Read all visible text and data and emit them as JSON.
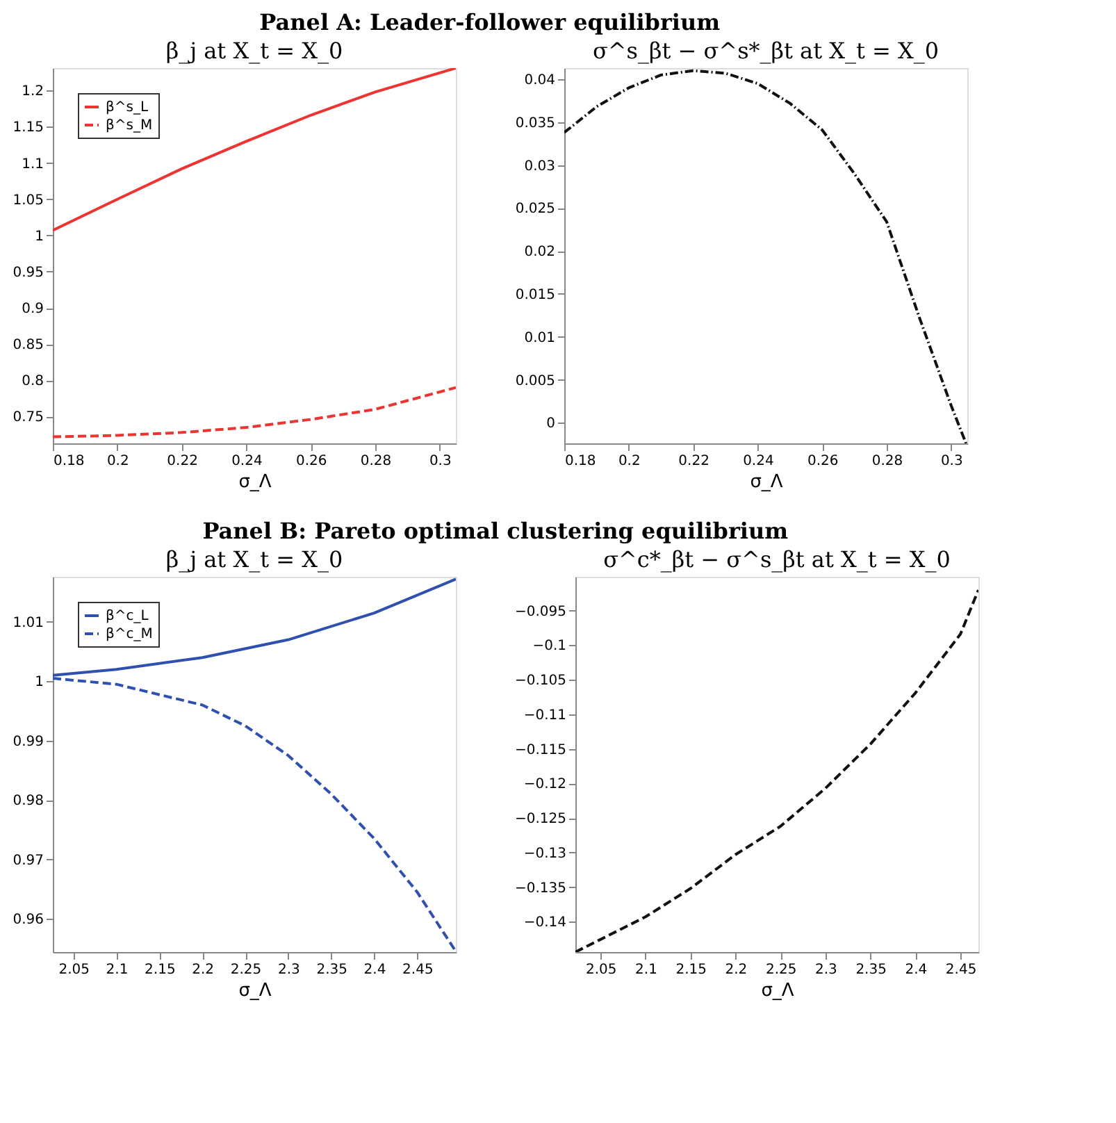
{
  "chart_data": [
    {
      "type": "line",
      "title": "β_j at X_t = X_0",
      "xlabel": "σ_Λ",
      "annotations": [
        "Panel A: Leader-follower equilibrium"
      ],
      "xlim": [
        0.18,
        0.305
      ],
      "xticks": [
        0.18,
        0.2,
        0.22,
        0.24,
        0.26,
        0.28,
        0.3
      ],
      "ylim": [
        0.713,
        1.231
      ],
      "yticks": [
        0.75,
        0.8,
        0.85,
        0.9,
        0.95,
        1,
        1.05,
        1.1,
        1.15,
        1.2
      ],
      "grid": false,
      "legend": "top left",
      "marker": "none",
      "series": [
        {
          "name": "β^s_L",
          "color": "#ee3333",
          "line_style": "solid",
          "x": [
            0.18,
            0.2,
            0.22,
            0.24,
            0.26,
            0.28,
            0.305
          ],
          "values": [
            1.007,
            1.05,
            1.092,
            1.13,
            1.166,
            1.198,
            1.231
          ]
        },
        {
          "name": "β^s_M",
          "color": "#ee3333",
          "line_style": "dashed",
          "x": [
            0.18,
            0.2,
            0.22,
            0.24,
            0.26,
            0.28,
            0.29,
            0.305
          ],
          "values": [
            0.722,
            0.724,
            0.728,
            0.735,
            0.746,
            0.76,
            0.772,
            0.79
          ]
        }
      ]
    },
    {
      "type": "line",
      "title": "σ^s_βt − σ^s*_βt at X_t = X_0",
      "xlabel": "σ_Λ",
      "xlim": [
        0.18,
        0.305
      ],
      "xticks": [
        0.18,
        0.2,
        0.22,
        0.24,
        0.26,
        0.28,
        0.3
      ],
      "ylim": [
        -0.0024,
        0.0413
      ],
      "yticks": [
        0,
        0.005,
        0.01,
        0.015,
        0.02,
        0.025,
        0.03,
        0.035,
        0.04
      ],
      "grid": false,
      "legend": false,
      "marker": "none",
      "series": [
        {
          "color": "#111111",
          "line_style": "dotted",
          "x": [
            0.18,
            0.19,
            0.2,
            0.21,
            0.22,
            0.23,
            0.24,
            0.25,
            0.26,
            0.27,
            0.28,
            0.29,
            0.3,
            0.3046
          ],
          "values": [
            0.0338,
            0.0368,
            0.039,
            0.0405,
            0.041,
            0.0407,
            0.0395,
            0.0372,
            0.0341,
            0.029,
            0.0234,
            0.0124,
            0.002,
            -0.0024
          ]
        }
      ]
    },
    {
      "type": "line",
      "title": "β_j at X_t = X_0",
      "xlabel": "σ_Λ",
      "annotations": [
        "Panel B: Pareto optimal clustering equilibrium"
      ],
      "xlim": [
        2.026,
        2.495
      ],
      "xticks": [
        2.05,
        2.1,
        2.15,
        2.2,
        2.25,
        2.3,
        2.35,
        2.4,
        2.45
      ],
      "ylim": [
        0.9544,
        1.0176
      ],
      "yticks": [
        0.96,
        0.97,
        0.98,
        0.99,
        1,
        1.01
      ],
      "grid": false,
      "legend": "top left",
      "marker": "none",
      "series": [
        {
          "name": "β^c_L",
          "color": "#3050b0",
          "line_style": "solid",
          "x": [
            2.026,
            2.1,
            2.2,
            2.3,
            2.4,
            2.495
          ],
          "values": [
            1.001,
            1.002,
            1.004,
            1.007,
            1.0115,
            1.0172
          ]
        },
        {
          "name": "β^c_M",
          "color": "#3050b0",
          "line_style": "dashed",
          "x": [
            2.026,
            2.1,
            2.2,
            2.25,
            2.3,
            2.35,
            2.4,
            2.45,
            2.495
          ],
          "values": [
            1.0005,
            0.9995,
            0.996,
            0.9925,
            0.9875,
            0.981,
            0.9735,
            0.9645,
            0.9545
          ]
        }
      ]
    },
    {
      "type": "line",
      "title": "σ^c*_βt − σ^s_βt at X_t = X_0",
      "xlabel": "σ_Λ",
      "xlim": [
        2.022,
        2.47
      ],
      "xticks": [
        2.05,
        2.1,
        2.15,
        2.2,
        2.25,
        2.3,
        2.35,
        2.4,
        2.45
      ],
      "ylim": [
        -0.1444,
        -0.0901
      ],
      "yticks": [
        -0.14,
        -0.135,
        -0.13,
        -0.125,
        -0.12,
        -0.115,
        -0.11,
        -0.105,
        -0.1,
        -0.095
      ],
      "grid": false,
      "legend": false,
      "marker": "none",
      "series": [
        {
          "color": "#111111",
          "line_style": "dashed",
          "x": [
            2.022,
            2.1,
            2.15,
            2.2,
            2.25,
            2.3,
            2.35,
            2.4,
            2.45,
            2.47
          ],
          "values": [
            -0.1444,
            -0.1393,
            -0.1352,
            -0.1303,
            -0.1262,
            -0.1207,
            -0.1143,
            -0.1069,
            -0.0984,
            -0.092
          ]
        }
      ]
    }
  ]
}
